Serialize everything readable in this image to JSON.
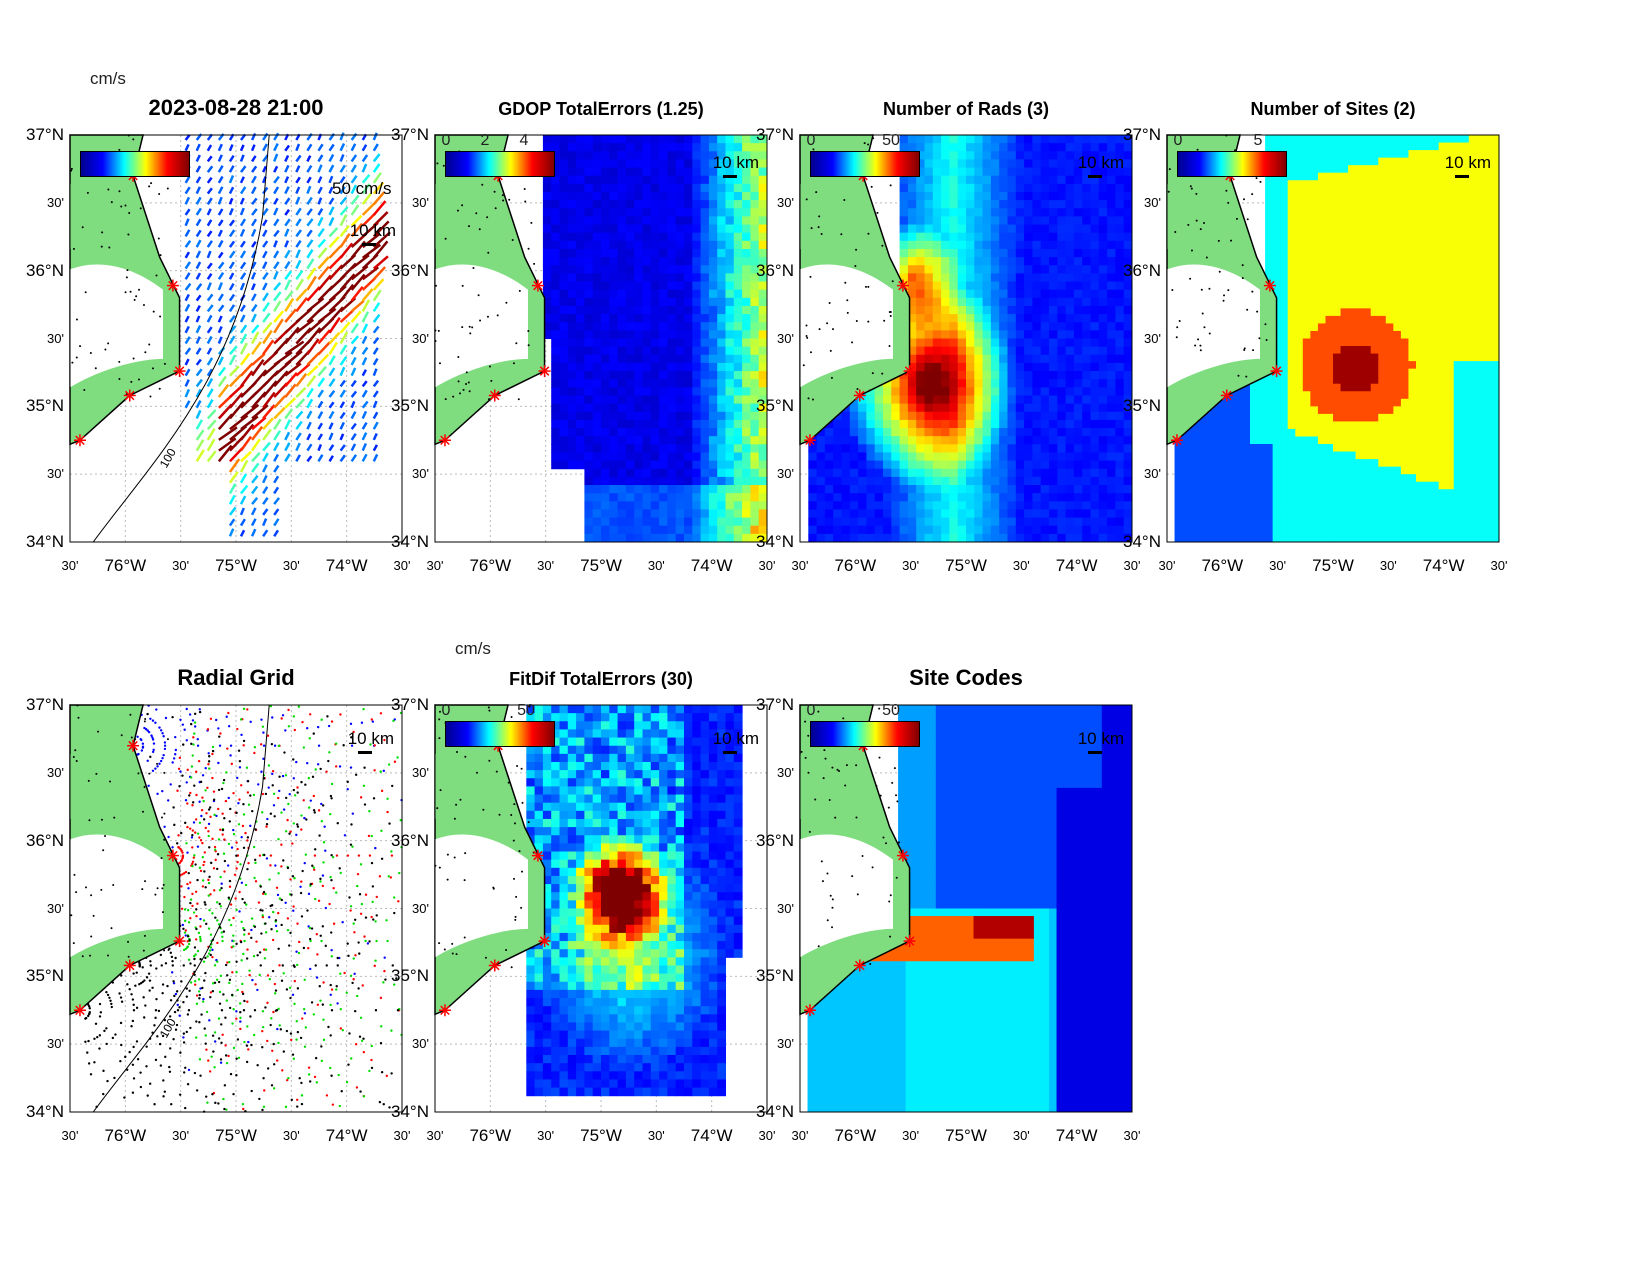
{
  "timestamp_title": "2023-08-28 21:00",
  "lat_labels": [
    "37°N",
    "30'",
    "36°N",
    "30'",
    "35°N",
    "30'",
    "34°N"
  ],
  "lon_labels": [
    "30'",
    "76°W",
    "30'",
    "75°W",
    "30'",
    "74°W",
    "30'"
  ],
  "scale_label": "10 km",
  "vector_scale_label": "50 cm/s",
  "contour_label_100": "100",
  "colors": {
    "land": "#7fdd80",
    "site_marker": "#ff0000",
    "grid_colors": [
      "#0000ff",
      "#ff0000",
      "#00dd00",
      "#000000"
    ]
  },
  "panels": [
    {
      "id": "total-vectors",
      "title": "2023-08-28 21:00",
      "units": "cm/s",
      "cbar_ticks": [],
      "field": "vectors"
    },
    {
      "id": "gdop",
      "title": "GDOP TotalErrors (1.25)",
      "cbar_ticks": [
        "0",
        "2",
        "4"
      ],
      "contour": "1.25",
      "field": "gdop"
    },
    {
      "id": "num-rads",
      "title": "Number of Rads (3)",
      "cbar_ticks": [
        "0",
        "50"
      ],
      "field": "rads"
    },
    {
      "id": "num-sites",
      "title": "Number of Sites (2)",
      "cbar_ticks": [
        "0",
        "5"
      ],
      "contour": "2",
      "field": "sites"
    },
    {
      "id": "radial-grid",
      "title": "Radial Grid",
      "field": "grid"
    },
    {
      "id": "fitdif",
      "title": "FitDif TotalErrors (30)",
      "units": "cm/s",
      "cbar_ticks": [
        "0",
        "50"
      ],
      "contour": "30",
      "field": "fitdif"
    },
    {
      "id": "site-codes",
      "title": "Site Codes",
      "cbar_ticks": [
        "0",
        "50"
      ],
      "field": "codes"
    }
  ]
}
